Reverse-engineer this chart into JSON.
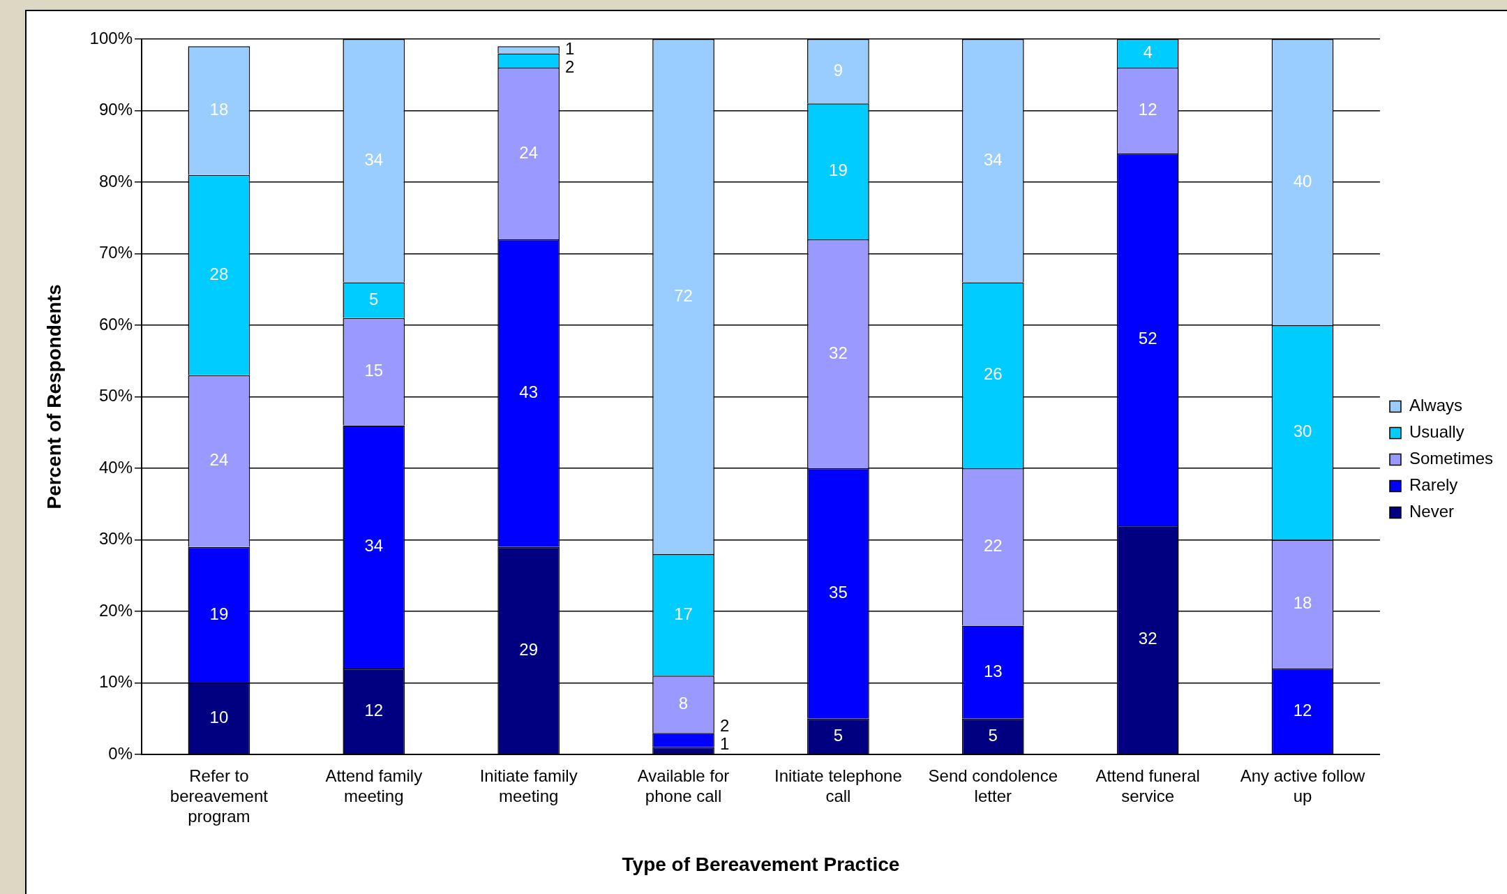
{
  "chart_data": {
    "type": "bar",
    "stacked": true,
    "xlabel": "Type of Bereavement Practice",
    "ylabel": "Percent of Respondents",
    "categories": [
      "Refer to bereavement program",
      "Attend family meeting",
      "Initiate family meeting",
      "Available for phone call",
      "Initiate telephone call",
      "Send condolence letter",
      "Attend funeral service",
      "Any active follow up"
    ],
    "series": [
      {
        "name": "Never",
        "color": "#000080",
        "values": [
          10,
          12,
          29,
          1,
          5,
          5,
          32,
          0
        ],
        "value_labels": [
          "10",
          "12",
          "29",
          "1",
          "5",
          "5",
          "32",
          null
        ]
      },
      {
        "name": "Rarely",
        "color": "#0000ff",
        "values": [
          19,
          34,
          43,
          2,
          35,
          13,
          52,
          12
        ],
        "value_labels": [
          "19",
          "34",
          "43",
          "2",
          "35",
          "13",
          "52",
          "12"
        ]
      },
      {
        "name": "Sometimes",
        "color": "#9999ff",
        "values": [
          24,
          15,
          24,
          8,
          32,
          22,
          12,
          18
        ],
        "value_labels": [
          "24",
          "15",
          "24",
          "8",
          "32",
          "22",
          "12",
          "18"
        ]
      },
      {
        "name": "Usually",
        "color": "#00ccff",
        "values": [
          28,
          5,
          2,
          17,
          19,
          26,
          4,
          30
        ],
        "value_labels": [
          "28",
          "5",
          "2",
          "17",
          "19",
          "26",
          "4",
          "30"
        ]
      },
      {
        "name": "Always",
        "color": "#99ccff",
        "values": [
          18,
          34,
          1,
          72,
          9,
          34,
          0,
          40
        ],
        "value_labels": [
          "18",
          "34",
          "1",
          "72",
          "9",
          "34",
          null,
          "40"
        ]
      }
    ],
    "ylim": [
      0,
      100
    ],
    "yticks": [
      {
        "value": 0,
        "label": "0%"
      },
      {
        "value": 10,
        "label": "10%"
      },
      {
        "value": 20,
        "label": "20%"
      },
      {
        "value": 30,
        "label": "30%"
      },
      {
        "value": 40,
        "label": "40%"
      },
      {
        "value": 50,
        "label": "50%"
      },
      {
        "value": 60,
        "label": "60%"
      },
      {
        "value": 70,
        "label": "70%"
      },
      {
        "value": 80,
        "label": "80%"
      },
      {
        "value": 90,
        "label": "90%"
      },
      {
        "value": 100,
        "label": "100%"
      }
    ],
    "grid": "y",
    "legend": "right"
  }
}
